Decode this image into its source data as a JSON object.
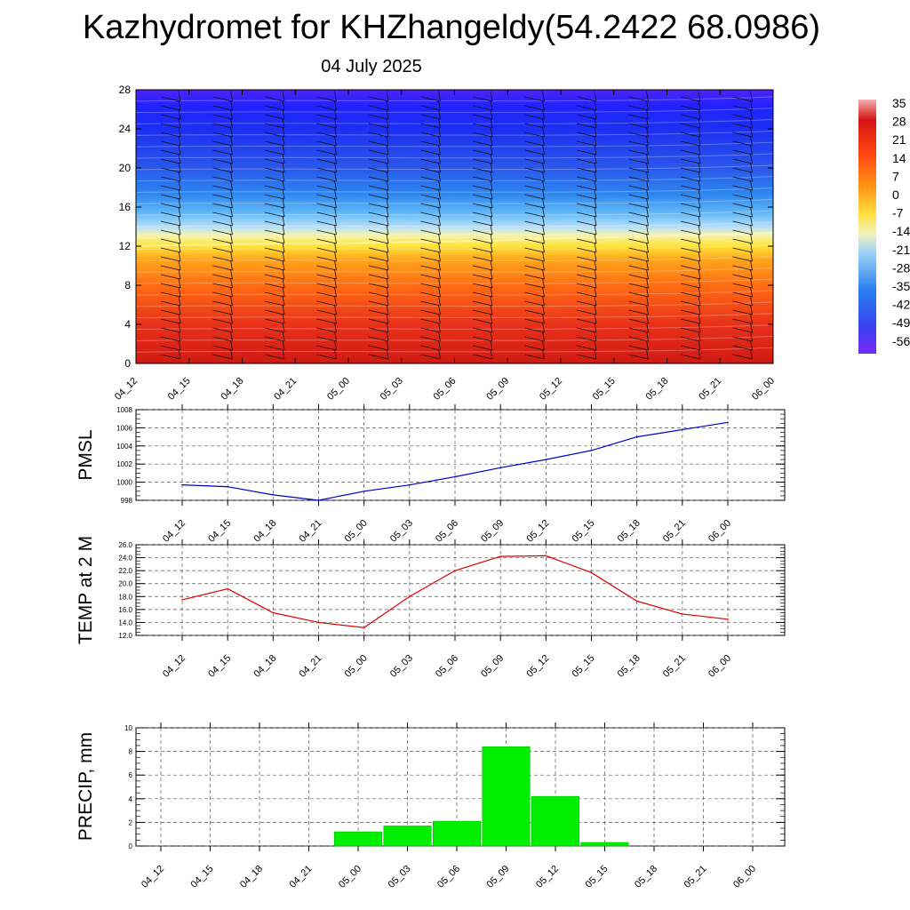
{
  "header": {
    "title": "Kazhydromet for KHZhangeldy(54.2422 68.0986)",
    "subtitle": "04 July 2025"
  },
  "chart_data": [
    {
      "type": "heatmap",
      "name": "cross-section",
      "x_ticks": [
        "04_12",
        "04_15",
        "04_18",
        "04_21",
        "05_00",
        "05_03",
        "05_06",
        "05_09",
        "05_12",
        "05_15",
        "05_18",
        "05_21",
        "06_00"
      ],
      "y_ticks": [
        "0",
        "4",
        "8",
        "12",
        "16",
        "20",
        "24",
        "28"
      ],
      "ylim": [
        0,
        28
      ],
      "colorbar_labels": [
        "35",
        "28",
        "21",
        "14",
        "7",
        "0",
        "-7",
        "-14",
        "-21",
        "-28",
        "-35",
        "-42",
        "-49",
        "-56"
      ],
      "freezing_level": [
        12.0,
        12.1,
        12.2,
        12.3,
        12.3,
        12.4,
        12.5,
        12.6,
        12.8,
        12.9,
        13.1,
        13.2,
        13.4
      ],
      "wind_barbs": true,
      "colors": {
        "warm_low": "#d41a12",
        "orange": "#ff8a12",
        "yellow": "#ffe33a",
        "light_blue": "#a6d8ff",
        "mid_blue": "#2a7ff2",
        "deep_blue": "#1c2bf0",
        "top": "#4a1ff5"
      }
    },
    {
      "type": "line",
      "name": "PMSL",
      "ylabel": "PMSL",
      "x": [
        "04_12",
        "04_15",
        "04_18",
        "04_21",
        "05_00",
        "05_03",
        "05_06",
        "05_09",
        "05_12",
        "05_15",
        "05_18",
        "05_21",
        "06_00"
      ],
      "values": [
        999.7,
        999.5,
        998.6,
        998.0,
        999.0,
        999.7,
        1000.6,
        1001.6,
        1002.5,
        1003.5,
        1005.0,
        1005.8,
        1006.6
      ],
      "y_ticks": [
        "998",
        "1000",
        "1002",
        "1004",
        "1006",
        "1008"
      ],
      "ylim": [
        998,
        1008
      ],
      "color": "#0000cc",
      "grid": true
    },
    {
      "type": "line",
      "name": "TEMP",
      "ylabel": "TEMP at 2 M",
      "x": [
        "04_12",
        "04_15",
        "04_18",
        "04_21",
        "05_00",
        "05_03",
        "05_06",
        "05_09",
        "05_12",
        "05_15",
        "05_18",
        "05_21",
        "06_00"
      ],
      "values": [
        17.5,
        19.2,
        15.5,
        14.0,
        13.2,
        18.0,
        22.0,
        24.2,
        24.3,
        21.7,
        17.3,
        15.3,
        14.5
      ],
      "y_ticks": [
        "12.0",
        "14.0",
        "16.0",
        "18.0",
        "20.0",
        "22.0",
        "24.0",
        "26.0"
      ],
      "ylim": [
        12,
        26
      ],
      "color": "#dd0000",
      "grid": true
    },
    {
      "type": "bar",
      "name": "PRECIP",
      "ylabel": "PRECIP, mm",
      "categories": [
        "04_12",
        "04_15",
        "04_18",
        "04_21",
        "05_00",
        "05_03",
        "05_06",
        "05_09",
        "05_12",
        "05_15",
        "05_18",
        "05_21",
        "06_00"
      ],
      "values": [
        0,
        0,
        0,
        0,
        1.2,
        1.7,
        2.1,
        8.4,
        4.2,
        0.3,
        0,
        0,
        0
      ],
      "y_ticks": [
        "0",
        "2",
        "4",
        "6",
        "8",
        "10"
      ],
      "ylim": [
        0,
        10
      ],
      "color": "#00ee00",
      "grid": true
    }
  ]
}
